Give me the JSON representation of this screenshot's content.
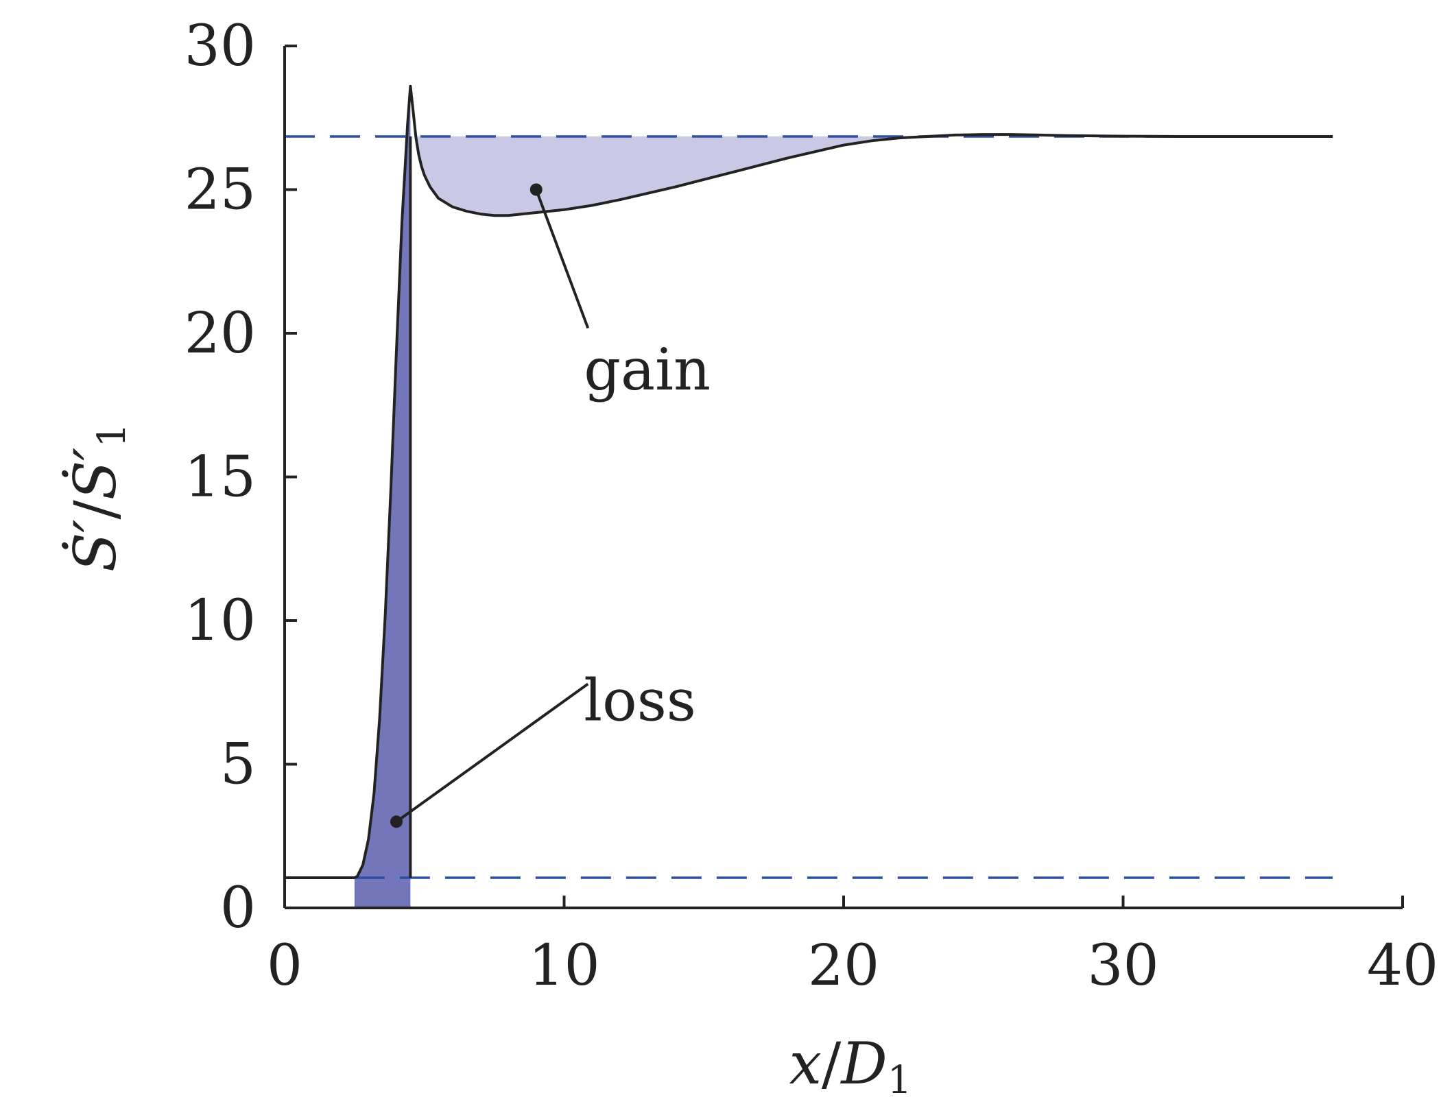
{
  "chart_data": {
    "type": "line",
    "title": "",
    "xlabel": {
      "var": "x",
      "slash": "/",
      "base": "D",
      "sub": "1"
    },
    "ylabel": {
      "numer": "Ṡ′",
      "slash": "/",
      "denom": "Ṡ′",
      "sub": "1"
    },
    "xlim": [
      0,
      40
    ],
    "ylim": [
      0,
      30
    ],
    "xticks": [
      0,
      10,
      20,
      30,
      40
    ],
    "yticks": [
      0,
      5,
      10,
      15,
      20,
      25,
      30
    ],
    "xtick_labels": [
      "0",
      "10",
      "20",
      "30",
      "40"
    ],
    "ytick_labels": [
      "0",
      "5",
      "10",
      "15",
      "20",
      "25",
      "30"
    ],
    "grid": false,
    "colors": {
      "curve": "#222222",
      "reference": "#2e4fa3",
      "loss_fill": "#7376b8",
      "gain_fill": "#c9c9e6"
    },
    "series": [
      {
        "role": "profile",
        "x": [
          0,
          2.5,
          2.6,
          2.8,
          3.0,
          3.2,
          3.4,
          3.6,
          3.8,
          4.0,
          4.2,
          4.4,
          4.5,
          4.6,
          4.7,
          4.8,
          4.9,
          5.0,
          5.2,
          5.5,
          6.0,
          6.5,
          7.0,
          7.5,
          8.0,
          9.0,
          10.0,
          11.0,
          12.0,
          14.0,
          16.0,
          18.0,
          20.0,
          21.0,
          22.0,
          23.0,
          24.0,
          25.0,
          26.0,
          27.0,
          28.0,
          30.0,
          32.0,
          35.0,
          37.5
        ],
        "y": [
          1.05,
          1.05,
          1.1,
          1.5,
          2.4,
          4.0,
          6.6,
          10.2,
          14.6,
          19.4,
          23.9,
          27.3,
          28.6,
          27.7,
          26.8,
          26.2,
          25.8,
          25.5,
          25.1,
          24.7,
          24.4,
          24.25,
          24.15,
          24.1,
          24.1,
          24.2,
          24.3,
          24.45,
          24.65,
          25.1,
          25.6,
          26.1,
          26.55,
          26.7,
          26.8,
          26.85,
          26.9,
          26.92,
          26.92,
          26.9,
          26.88,
          26.86,
          26.85,
          26.85,
          26.85
        ]
      },
      {
        "role": "reference-upper",
        "y": 26.85
      },
      {
        "role": "reference-lower",
        "y": 1.05
      }
    ],
    "shock_x": 4.5,
    "annotations": [
      {
        "text": "gain",
        "point": [
          9.0,
          25.0
        ],
        "label_pos": [
          11.0,
          20.0
        ]
      },
      {
        "text": "loss",
        "point": [
          4.0,
          3.0
        ],
        "label_pos": [
          11.0,
          7.2
        ]
      }
    ]
  }
}
